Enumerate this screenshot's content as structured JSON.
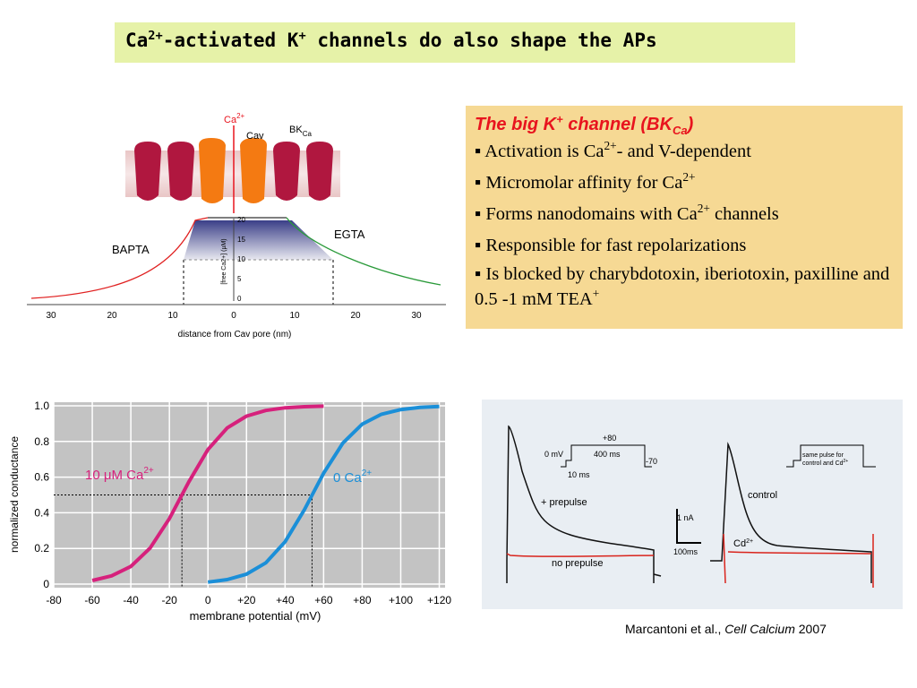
{
  "title": [
    "Ca",
    "2+",
    "-activated K",
    "+",
    " channels do also shape the APs"
  ],
  "info": {
    "heading": [
      "The big K",
      "+",
      " channel (BK",
      "Ca",
      ")"
    ],
    "bullets": [
      [
        "▪ Activation is Ca",
        "2+",
        "- and V-dependent"
      ],
      [
        "▪ Micromolar affinity for Ca",
        "2+"
      ],
      [
        "▪ Forms nanodomains with Ca",
        "2+",
        " channels"
      ],
      [
        "▪ Responsible for fast repolarizations"
      ],
      [
        "▪ Is blocked by charybdotoxin, iberiotoxin, paxilline and 0.5 -1 mM TEA",
        "+"
      ]
    ]
  },
  "nanodomain_figure": {
    "labels": {
      "ca": [
        "Ca",
        "2+"
      ],
      "cav": "Cav",
      "bk": [
        "BK",
        "Ca"
      ],
      "bapta": "BAPTA",
      "egta": "EGTA"
    },
    "x_ticks": [
      "30",
      "20",
      "10",
      "0",
      "10",
      "20",
      "30"
    ],
    "y_ticks": [
      "0",
      "5",
      "10",
      "15",
      "20"
    ],
    "y_label": "[free Ca2+] (µM)",
    "x_label": "distance from Cav pore (nm)"
  },
  "current_figure": {
    "protocol": {
      "top": "+80",
      "hold": "0 mV",
      "duration": "400 ms",
      "end": "-70",
      "pre": "10 ms"
    },
    "labels": {
      "prepulse": "+ prepulse",
      "no_prepulse": "no prepulse",
      "scale_current": "1 nA",
      "scale_time": "100ms",
      "control": "control",
      "cd": [
        "Cd",
        "2+"
      ],
      "same": [
        "same pulse for",
        "control and Cd",
        "2+"
      ]
    }
  },
  "citation": [
    "Marcantoni et al., ",
    "Cell Calcium",
    " 2007"
  ],
  "chart_data": {
    "type": "line",
    "xlabel": "membrane potential (mV)",
    "ylabel": "normalized conductance",
    "x": [
      -60,
      -50,
      -40,
      -30,
      -20,
      -10,
      0,
      10,
      20,
      30,
      40,
      50,
      60,
      70,
      80,
      90,
      100,
      110,
      120
    ],
    "series": [
      {
        "name": "10 μM Ca2+",
        "color": "#d6217c",
        "values": [
          0.02,
          0.046,
          0.099,
          0.202,
          0.368,
          0.572,
          0.755,
          0.876,
          0.942,
          0.974,
          0.989,
          0.995,
          0.998,
          null,
          null,
          null,
          null,
          null,
          null
        ]
      },
      {
        "name": "0 Ca2+",
        "color": "#1b8fd8",
        "values": [
          null,
          null,
          null,
          null,
          null,
          null,
          0.011,
          0.025,
          0.056,
          0.119,
          0.237,
          0.417,
          0.622,
          0.791,
          0.897,
          0.953,
          0.979,
          0.991,
          0.996
        ]
      }
    ],
    "half_level": 0.5,
    "midpoints": [
      -13.5,
      54
    ],
    "xlim": [
      -80,
      123
    ],
    "ylim": [
      0,
      1
    ],
    "xticks": [
      -80,
      -60,
      -40,
      -20,
      0,
      {
        "value": 20,
        "label": "+20"
      },
      {
        "value": 40,
        "label": "+40"
      },
      {
        "value": 60,
        "label": "+60"
      },
      {
        "value": 80,
        "label": "+80"
      },
      {
        "value": 100,
        "label": "+100"
      },
      {
        "value": 120,
        "label": "+120"
      }
    ],
    "yticks": [
      0,
      0.2,
      0.4,
      0.6,
      0.8,
      {
        "value": 1,
        "label": "1.0"
      }
    ],
    "grid": true
  }
}
